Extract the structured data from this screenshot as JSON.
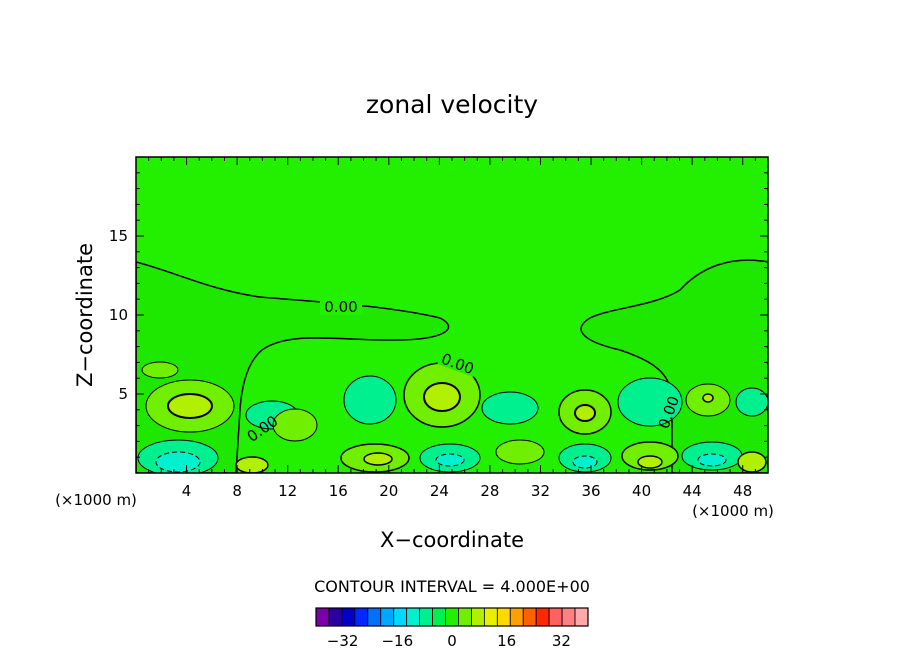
{
  "chart_data": {
    "type": "contour",
    "title": "zonal velocity",
    "xlabel": "X−coordinate",
    "ylabel": "Z−coordinate",
    "x_unit_left": "(×1000 m)",
    "x_unit_right": "(×1000 m)",
    "xlim": [
      0,
      50
    ],
    "ylim": [
      0,
      20
    ],
    "x_ticks": [
      4,
      8,
      12,
      16,
      20,
      24,
      28,
      32,
      36,
      40,
      44,
      48
    ],
    "y_ticks": [
      5,
      10,
      15
    ],
    "contour_label": "0.00",
    "contour_interval_text": "CONTOUR INTERVAL = 4.000E+00",
    "colorbar": {
      "levels": [
        -36,
        -32,
        -28,
        -24,
        -20,
        -16,
        -12,
        -8,
        -4,
        0,
        4,
        8,
        12,
        16,
        20,
        24,
        28,
        32,
        36
      ],
      "tick_values": [
        -32,
        -16,
        0,
        16,
        32
      ],
      "tick_labels": [
        "−32",
        "−16",
        "0",
        "16",
        "32"
      ],
      "colors": [
        "#7a00a8",
        "#2a00a0",
        "#0000c8",
        "#0028ff",
        "#0070ff",
        "#00a8ff",
        "#00d8ff",
        "#00f0d0",
        "#00f090",
        "#00f050",
        "#22f000",
        "#70f000",
        "#b0f000",
        "#e8f000",
        "#ffd800",
        "#ffa000",
        "#ff6000",
        "#ff2800",
        "#ff6060",
        "#ff8080",
        "#ffa8a8"
      ]
    },
    "background_color": "#22f000"
  }
}
